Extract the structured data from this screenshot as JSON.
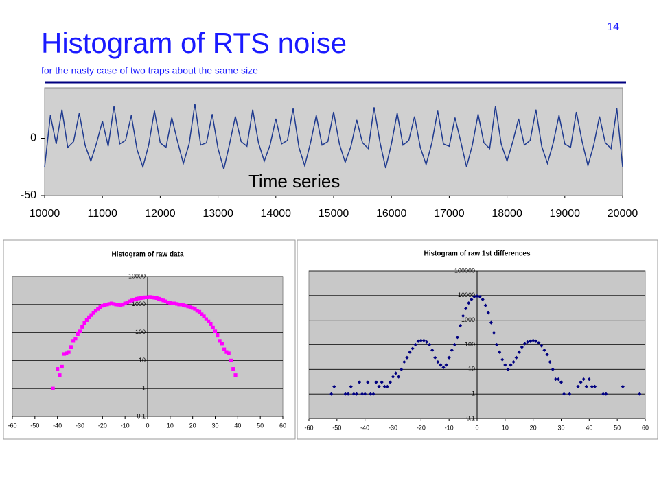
{
  "title": "Histogram of RTS noise",
  "subtitle": "for the nasty case of two traps about the same size",
  "page_number": "14",
  "chart_data": [
    {
      "type": "line",
      "annotation": "Time series",
      "series": [
        {
          "color": "#1f3a8f",
          "x": [
            10000,
            10100,
            10200,
            10300,
            10400,
            10500,
            10600,
            10700,
            10800,
            10900,
            11000,
            11100,
            11200,
            11300,
            11400,
            11500,
            11600,
            11700,
            11800,
            11900,
            12000,
            12100,
            12200,
            12300,
            12400,
            12500,
            12600,
            12700,
            12800,
            12900,
            13000,
            13100,
            13200,
            13300,
            13400,
            13500,
            13600,
            13700,
            13800,
            13900,
            14000,
            14100,
            14200,
            14300,
            14400,
            14500,
            14600,
            14700,
            14800,
            14900,
            15000,
            15100,
            15200,
            15300,
            15400,
            15500,
            15600,
            15700,
            15800,
            15900,
            16000,
            16100,
            16200,
            16300,
            16400,
            16500,
            16600,
            16700,
            16800,
            16900,
            17000,
            17100,
            17200,
            17300,
            17400,
            17500,
            17600,
            17700,
            17800,
            17900,
            18000,
            18100,
            18200,
            18300,
            18400,
            18500,
            18600,
            18700,
            18800,
            18900,
            19000,
            19100,
            19200,
            19300,
            19400,
            19500,
            19600,
            19700,
            19800,
            19900,
            20000
          ],
          "values": [
            -25,
            20,
            -5,
            25,
            -8,
            -3,
            22,
            -6,
            -20,
            -4,
            15,
            -7,
            28,
            -5,
            -2,
            20,
            -10,
            -25,
            -6,
            24,
            -4,
            -8,
            18,
            -3,
            -22,
            -5,
            30,
            -6,
            -4,
            21,
            -9,
            -27,
            -5,
            19,
            -3,
            -7,
            25,
            -4,
            -20,
            -6,
            17,
            -5,
            -2,
            26,
            -8,
            -24,
            -4,
            20,
            -6,
            -3,
            23,
            -5,
            -21,
            -7,
            16,
            -4,
            -9,
            27,
            -3,
            -26,
            -5,
            22,
            -6,
            -2,
            19,
            -8,
            -23,
            -4,
            24,
            -5,
            -7,
            18,
            -3,
            -25,
            -6,
            21,
            -4,
            -9,
            28,
            -5,
            -20,
            -3,
            17,
            -6,
            -2,
            25,
            -7,
            -22,
            -4,
            20,
            -5,
            -8,
            23,
            -3,
            -24,
            -6,
            19,
            -4,
            -9,
            26,
            -25
          ]
        }
      ],
      "xlim": [
        10000,
        20000
      ],
      "xticks": [
        10000,
        11000,
        12000,
        13000,
        14000,
        15000,
        16000,
        17000,
        18000,
        19000,
        20000
      ],
      "ylim": [
        -50,
        44
      ],
      "yticks": [
        -50,
        0
      ]
    },
    {
      "type": "scatter",
      "title": "Histogram of raw data",
      "log_y": true,
      "grid": true,
      "marker": "square",
      "series": [
        {
          "color": "#ff00ff",
          "x": [
            -42,
            -40,
            -39,
            -38,
            -37,
            -36,
            -35,
            -34,
            -33,
            -32,
            -31,
            -30,
            -29,
            -28,
            -27,
            -26,
            -25,
            -24,
            -23,
            -22,
            -21,
            -20,
            -19,
            -18,
            -17,
            -16,
            -15,
            -14,
            -13,
            -12,
            -11,
            -10,
            -9,
            -8,
            -7,
            -6,
            -5,
            -4,
            -3,
            -2,
            -1,
            0,
            1,
            2,
            3,
            4,
            5,
            6,
            7,
            8,
            9,
            10,
            11,
            12,
            13,
            14,
            15,
            16,
            17,
            18,
            19,
            20,
            21,
            22,
            23,
            24,
            25,
            26,
            27,
            28,
            29,
            30,
            31,
            32,
            33,
            34,
            35,
            36,
            37,
            38,
            39
          ],
          "values": [
            1,
            5,
            3,
            6,
            17,
            18,
            20,
            30,
            50,
            60,
            90,
            110,
            160,
            220,
            280,
            350,
            420,
            500,
            600,
            700,
            800,
            900,
            950,
            1000,
            1050,
            1100,
            1050,
            1000,
            980,
            950,
            1000,
            1100,
            1200,
            1300,
            1400,
            1500,
            1600,
            1650,
            1700,
            1750,
            1800,
            1800,
            1850,
            1800,
            1750,
            1700,
            1600,
            1500,
            1400,
            1300,
            1200,
            1150,
            1100,
            1100,
            1050,
            1000,
            1000,
            950,
            900,
            850,
            800,
            750,
            700,
            600,
            550,
            450,
            380,
            300,
            250,
            200,
            150,
            110,
            80,
            50,
            40,
            25,
            20,
            18,
            10,
            5,
            3
          ]
        }
      ],
      "xlim": [
        -60,
        60
      ],
      "xticks": [
        -60,
        -50,
        -40,
        -30,
        -20,
        -10,
        0,
        10,
        20,
        30,
        40,
        50,
        60
      ],
      "ylim": [
        0.1,
        10000
      ],
      "yticks": [
        0.1,
        1,
        10,
        100,
        1000,
        10000
      ]
    },
    {
      "type": "scatter",
      "title": "Histogram of raw 1st differences",
      "log_y": true,
      "grid": true,
      "marker": "diamond",
      "series": [
        {
          "color": "#000080",
          "x": [
            -52,
            -51,
            -47,
            -46,
            -45,
            -44,
            -43,
            -42,
            -41,
            -40,
            -39,
            -38,
            -37,
            -36,
            -35,
            -34,
            -33,
            -32,
            -31,
            -30,
            -29,
            -28,
            -27,
            -26,
            -25,
            -24,
            -23,
            -22,
            -21,
            -20,
            -19,
            -18,
            -17,
            -16,
            -15,
            -14,
            -13,
            -12,
            -11,
            -10,
            -9,
            -8,
            -7,
            -6,
            -5,
            -4,
            -3,
            -2,
            -1,
            0,
            1,
            2,
            3,
            4,
            5,
            6,
            7,
            8,
            9,
            10,
            11,
            12,
            13,
            14,
            15,
            16,
            17,
            18,
            19,
            20,
            21,
            22,
            23,
            24,
            25,
            26,
            27,
            28,
            29,
            30,
            31,
            33,
            36,
            37,
            38,
            39,
            40,
            41,
            42,
            45,
            46,
            52,
            58
          ],
          "values": [
            1,
            2,
            1,
            1,
            2,
            1,
            1,
            3,
            1,
            1,
            3,
            1,
            1,
            3,
            2,
            3,
            2,
            2,
            3,
            5,
            7,
            5,
            10,
            20,
            30,
            50,
            70,
            100,
            140,
            150,
            150,
            130,
            100,
            60,
            30,
            20,
            15,
            12,
            15,
            30,
            60,
            100,
            200,
            600,
            1500,
            3000,
            5000,
            7000,
            9000,
            9500,
            9000,
            7000,
            4000,
            2000,
            800,
            300,
            100,
            50,
            25,
            15,
            10,
            15,
            20,
            30,
            50,
            80,
            110,
            130,
            140,
            150,
            140,
            120,
            90,
            60,
            40,
            20,
            10,
            4,
            4,
            3,
            1,
            1,
            2,
            3,
            4,
            2,
            4,
            2,
            2,
            1,
            1,
            2,
            1
          ]
        }
      ],
      "xlim": [
        -60,
        60
      ],
      "xticks": [
        -60,
        -50,
        -40,
        -30,
        -20,
        -10,
        0,
        10,
        20,
        30,
        40,
        50,
        60
      ],
      "ylim": [
        0.1,
        100000
      ],
      "yticks": [
        0.1,
        1,
        10,
        100,
        1000,
        10000,
        100000
      ]
    }
  ]
}
